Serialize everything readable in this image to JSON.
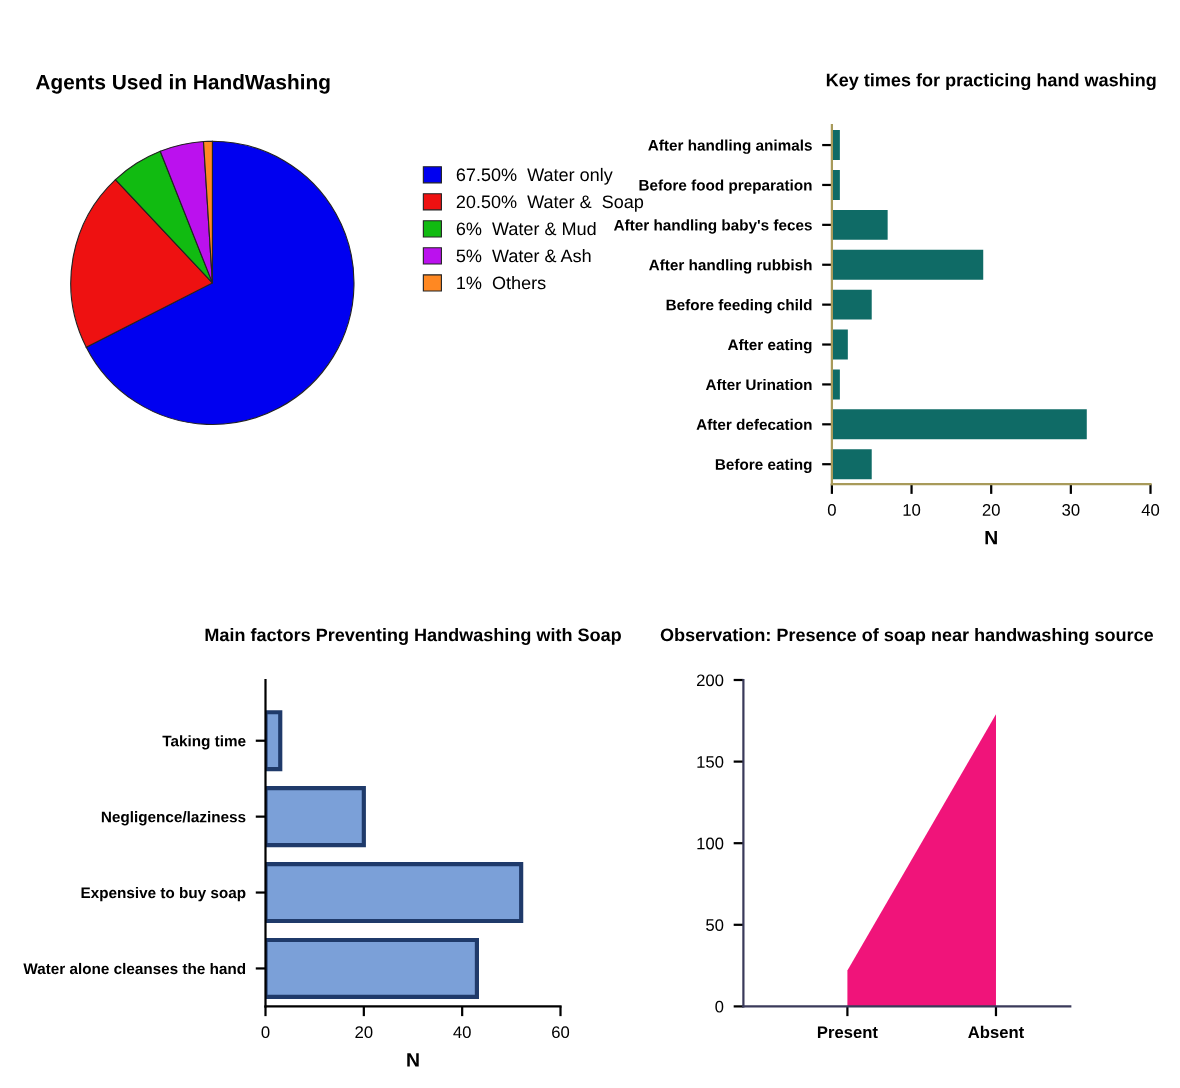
{
  "chart_data": [
    {
      "type": "pie",
      "title": "Agents Used in HandWashing",
      "categories": [
        "67.50%  Water only",
        "20.50%  Water &  Soap",
        "6%  Water & Mud",
        "5%  Water & Ash",
        "1%  Others"
      ],
      "values": [
        67.5,
        20.5,
        6,
        5,
        1
      ],
      "colors": [
        "#0000f0",
        "#ee1111",
        "#11bb11",
        "#bb11ee",
        "#ff8822"
      ],
      "legend": "right"
    },
    {
      "type": "bar",
      "orientation": "horizontal",
      "title": "Key times for practicing hand washing",
      "xlabel": "N",
      "categories": [
        "After handling animals",
        "Before food preparation",
        "After handling baby's feces",
        "After handling rubbish",
        "Before feeding child",
        "After eating",
        "After Urination",
        "After defecation",
        "Before eating"
      ],
      "values": [
        1,
        1,
        7,
        19,
        5,
        2,
        1,
        32,
        5
      ],
      "color": "#0f6b66",
      "xlim": [
        0,
        40
      ],
      "xticks": [
        0,
        10,
        20,
        30,
        40
      ],
      "grid": false
    },
    {
      "type": "bar",
      "orientation": "horizontal",
      "title": "Main factors Preventing Handwashing with Soap",
      "xlabel": "N",
      "categories": [
        "Taking time",
        "Negligence/laziness",
        "Expensive to buy soap",
        "Water alone cleanses the hand"
      ],
      "values": [
        3,
        20,
        52,
        43
      ],
      "color": "#7ba0d8",
      "xlim": [
        0,
        60
      ],
      "xticks": [
        0,
        20,
        40,
        60
      ],
      "grid": false
    },
    {
      "type": "area",
      "title": "Observation: Presence of soap near handwashing source",
      "categories": [
        "Present",
        "Absent"
      ],
      "values": [
        22,
        179
      ],
      "color": "#f0147a",
      "ylim": [
        0,
        200
      ],
      "yticks": [
        0,
        50,
        100,
        150,
        200
      ],
      "grid": false
    }
  ]
}
